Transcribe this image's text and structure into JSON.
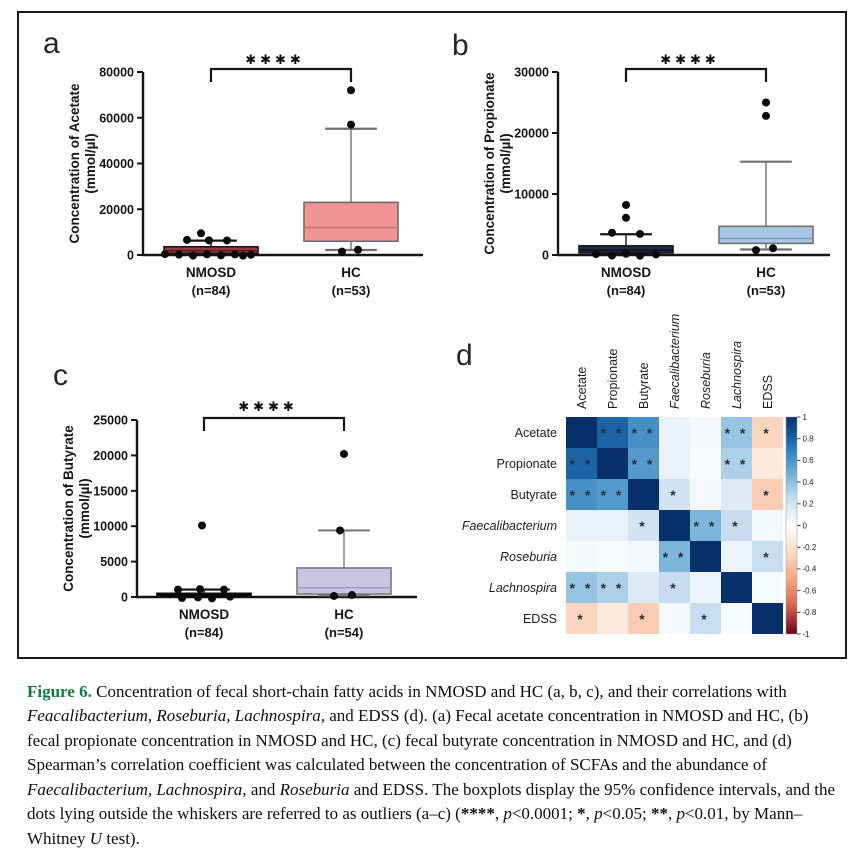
{
  "chart_data": [
    {
      "type": "box",
      "panel_label": "a",
      "ylabel": "Concentration of Acetate",
      "ylabel_units": "(mmol/µl)",
      "ylim": [
        0,
        80000
      ],
      "yticks": [
        0,
        20000,
        40000,
        60000,
        80000
      ],
      "significance": "✱✱✱✱",
      "groups": [
        {
          "label": "NMOSD",
          "sublabel": "(n=84)",
          "box_color": "#9e3b3f",
          "border_color": "#161616",
          "median": 1900,
          "median_color": "#551c20",
          "whisker_low": 150,
          "q1": 700,
          "q3": 3600,
          "whisker_high": 6300,
          "outliers": [
            [
              9500,
              -10
            ],
            [
              6600,
              -24
            ],
            [
              6400,
              -2
            ],
            [
              6350,
              16
            ],
            [
              400,
              -46
            ],
            [
              150,
              -32
            ],
            [
              -250,
              -18
            ],
            [
              300,
              -4
            ],
            [
              -150,
              10
            ],
            [
              250,
              24
            ],
            [
              100,
              40
            ],
            [
              -300,
              32
            ]
          ]
        },
        {
          "label": "HC",
          "sublabel": "(n=53)",
          "box_color": "#f09494",
          "border_color": "#6e6e6e",
          "median": 12000,
          "median_color": "#c07272",
          "whisker_low": 2200,
          "q1": 6000,
          "q3": 23000,
          "whisker_high": 55200,
          "outliers": [
            [
              72000,
              0
            ],
            [
              57000,
              0
            ],
            [
              1500,
              -9
            ],
            [
              2300,
              7
            ]
          ]
        }
      ]
    },
    {
      "type": "box",
      "panel_label": "b",
      "ylabel": "Concentration of Propionate",
      "ylabel_units": "(mmol/µl)",
      "ylim": [
        0,
        30000
      ],
      "yticks": [
        0,
        10000,
        20000,
        30000
      ],
      "significance": "✱✱✱✱",
      "groups": [
        {
          "label": "NMOSD",
          "sublabel": "(n=84)",
          "box_color": "#242a43",
          "border_color": "#14161f",
          "median": 800,
          "median_color": "#0e1120",
          "whisker_low": 60,
          "q1": 350,
          "q3": 1500,
          "whisker_high": 3400,
          "outliers": [
            [
              8200,
              0
            ],
            [
              6100,
              0
            ],
            [
              3650,
              -14
            ],
            [
              3450,
              14
            ],
            [
              150,
              -30
            ],
            [
              -80,
              -14
            ],
            [
              200,
              0
            ],
            [
              -120,
              14
            ],
            [
              100,
              30
            ]
          ]
        },
        {
          "label": "HC",
          "sublabel": "(n=53)",
          "box_color": "#a9c6e4",
          "border_color": "#707070",
          "median": 2700,
          "median_color": "#7e9fc4",
          "whisker_low": 900,
          "q1": 1900,
          "q3": 4700,
          "whisker_high": 15300,
          "outliers": [
            [
              25000,
              0
            ],
            [
              22800,
              0
            ],
            [
              800,
              -10
            ],
            [
              1100,
              7
            ]
          ]
        }
      ]
    },
    {
      "type": "box",
      "panel_label": "c",
      "ylabel": "Concentration of Butyrate",
      "ylabel_units": "(mmol/µl)",
      "ylim": [
        0,
        25000
      ],
      "yticks": [
        0,
        5000,
        10000,
        15000,
        20000,
        25000
      ],
      "significance": "✱✱✱✱",
      "groups": [
        {
          "label": "NMOSD",
          "sublabel": "(n=84)",
          "box_color": "#121212",
          "border_color": "#0b0b0b",
          "median": 260,
          "median_color": "#000000",
          "whisker_low": 40,
          "q1": 110,
          "q3": 520,
          "whisker_high": 1050,
          "outliers": [
            [
              10100,
              -2
            ],
            [
              1050,
              -26
            ],
            [
              1120,
              -4
            ],
            [
              1050,
              20
            ],
            [
              -150,
              -22
            ],
            [
              -60,
              -6
            ],
            [
              -200,
              8
            ],
            [
              50,
              26
            ]
          ]
        },
        {
          "label": "HC",
          "sublabel": "(n=54)",
          "box_color": "#c8c5e3",
          "border_color": "#7a7a7a",
          "median": 1300,
          "median_color": "#9f9cc2",
          "whisker_low": 250,
          "q1": 420,
          "q3": 4100,
          "whisker_high": 9400,
          "outliers": [
            [
              20200,
              0
            ],
            [
              9400,
              -4
            ],
            [
              150,
              -10
            ],
            [
              280,
              8
            ]
          ]
        }
      ]
    },
    {
      "type": "heatmap",
      "panel_label": "d",
      "labels": [
        "Acetate",
        "Propionate",
        "Butyrate",
        "Faecalibacterium",
        "Roseburia",
        "Lachnospira",
        "EDSS"
      ],
      "italic": [
        false,
        false,
        false,
        true,
        true,
        true,
        false
      ],
      "matrix": [
        [
          1.0,
          0.8,
          0.62,
          0.1,
          0.04,
          0.38,
          -0.28
        ],
        [
          0.8,
          1.0,
          0.58,
          0.1,
          0.03,
          0.32,
          -0.15
        ],
        [
          0.62,
          0.58,
          1.0,
          0.2,
          0.05,
          0.15,
          -0.32
        ],
        [
          0.1,
          0.1,
          0.2,
          1.0,
          0.45,
          0.25,
          0.05
        ],
        [
          0.04,
          0.03,
          0.05,
          0.45,
          1.0,
          0.08,
          0.24
        ],
        [
          0.38,
          0.32,
          0.15,
          0.25,
          0.08,
          1.0,
          0.03
        ],
        [
          -0.28,
          -0.15,
          -0.32,
          0.05,
          0.24,
          0.03,
          1.0
        ]
      ],
      "stars": [
        [
          "",
          "**",
          "**",
          "",
          "",
          "**",
          "*"
        ],
        [
          "**",
          "",
          "**",
          "",
          "",
          "**",
          ""
        ],
        [
          "**",
          "**",
          "",
          "*",
          "",
          "",
          "*"
        ],
        [
          "",
          "",
          "*",
          "",
          "**",
          "*",
          ""
        ],
        [
          "",
          "",
          "",
          "**",
          "",
          "",
          "*"
        ],
        [
          "**",
          "**",
          "",
          "*",
          "",
          "",
          ""
        ],
        [
          "*",
          "",
          "*",
          "",
          "*",
          "",
          ""
        ]
      ],
      "colorbar_ticks": [
        1,
        0.8,
        0.6,
        0.4,
        0.2,
        0,
        -0.2,
        -0.4,
        -0.6,
        -0.8,
        -1
      ]
    }
  ],
  "caption": {
    "runs": [
      {
        "t": "Figure 6.",
        "b": true,
        "c": "#157a42"
      },
      {
        "t": "  Concentration of fecal short-chain fatty acids in NMOSD and HC (a, b, c), and their correlations with "
      },
      {
        "t": "Feacalibacterium, Roseburia, Lachnospira",
        "i": true
      },
      {
        "t": ", and EDSS (d). (a) Fecal acetate concentration in NMOSD and HC, (b) fecal propionate concentration in NMOSD and HC, (c) fecal butyrate concentration in NMOSD and HC, and (d) Spearman’s correlation coefficient was calculated between the concentration of SCFAs and the abundance of "
      },
      {
        "t": "Faecalibacterium, Lachnospira,",
        "i": true
      },
      {
        "t": " and "
      },
      {
        "t": "Roseburia",
        "i": true
      },
      {
        "t": " and EDSS. The boxplots display the 95% confidence intervals, and the dots lying outside the whiskers are referred to as outliers (a–c) ("
      },
      {
        "t": "****",
        "b": true
      },
      {
        "t": ", "
      },
      {
        "t": "p",
        "i": true
      },
      {
        "t": "<0.0001; "
      },
      {
        "t": "*",
        "b": true
      },
      {
        "t": ", "
      },
      {
        "t": "p",
        "i": true
      },
      {
        "t": "<0.05; "
      },
      {
        "t": "**",
        "b": true
      },
      {
        "t": ", "
      },
      {
        "t": "p",
        "i": true
      },
      {
        "t": "<0.01, by Mann–Whitney "
      },
      {
        "t": "U",
        "i": true
      },
      {
        "t": " test)."
      }
    ]
  }
}
